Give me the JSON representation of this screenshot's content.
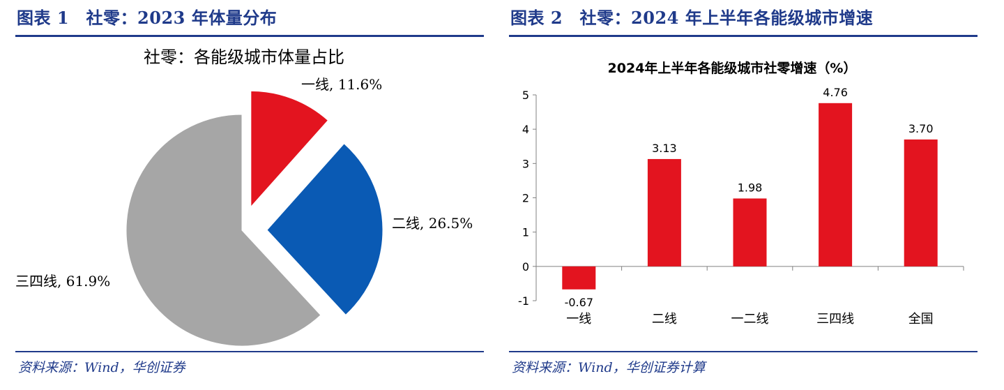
{
  "figure1": {
    "title": "图表 1　社零：2023 年体量分布",
    "source": "资料来源：Wind，华创证券",
    "chart_data": {
      "type": "pie",
      "title": "社零：各能级城市体量占比",
      "slices": [
        {
          "label": "一线",
          "value": 11.6,
          "text": "一线, 11.6%",
          "color": "#e3141f",
          "exploded": true
        },
        {
          "label": "二线",
          "value": 26.5,
          "text": "二线, 26.5%",
          "color": "#0a5ab4",
          "exploded": true
        },
        {
          "label": "三四线",
          "value": 61.9,
          "text": "三四线, 61.9%",
          "color": "#a6a6a6",
          "exploded": false
        }
      ]
    }
  },
  "figure2": {
    "title": "图表 2　社零：2024 年上半年各能级城市增速",
    "source": "资料来源：Wind，华创证券计算",
    "chart_data": {
      "type": "bar",
      "title": "2024年上半年各能级城市社零增速（%）",
      "categories": [
        "一线",
        "二线",
        "一二线",
        "三四线",
        "全国"
      ],
      "values": [
        -0.67,
        3.13,
        1.98,
        4.76,
        3.7
      ],
      "value_labels": [
        "-0.67",
        "3.13",
        "1.98",
        "4.76",
        "3.70"
      ],
      "ylim": [
        -1,
        5
      ],
      "yticks": [
        "-1",
        "0",
        "1",
        "2",
        "3",
        "4",
        "5"
      ],
      "bar_color": "#e3141f",
      "grid": false
    }
  }
}
